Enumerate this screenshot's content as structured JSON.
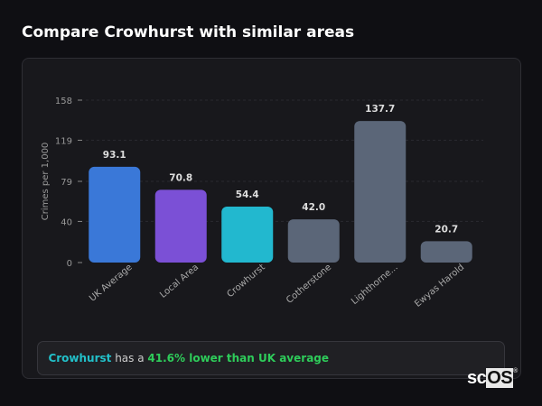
{
  "title": "Compare Crowhurst with similar areas",
  "chart_data": {
    "type": "bar",
    "categories": [
      "UK Average",
      "Local Area",
      "Crowhurst",
      "Cotherstone",
      "Lighthorne...",
      "Ewyas Harold"
    ],
    "values": [
      93.1,
      70.8,
      54.4,
      42.0,
      137.7,
      20.7
    ],
    "data_labels": [
      "93.1",
      "70.8",
      "54.4",
      "42.0",
      "137.7",
      "20.7"
    ],
    "colors": [
      "#3a78d8",
      "#7b50d6",
      "#22b8cf",
      "#5b6678",
      "#5b6678",
      "#5b6678"
    ],
    "ylabel": "Crimes per 1,000",
    "yticks": [
      0,
      40,
      79,
      119,
      158
    ],
    "ylim": [
      0,
      158
    ],
    "grid": true
  },
  "footer": {
    "area": "Crowhurst",
    "middle": " has a ",
    "comparison": "41.6% lower than UK average"
  },
  "logo": {
    "text_sc": "sc",
    "text_os": "OS",
    "mark": "®"
  }
}
